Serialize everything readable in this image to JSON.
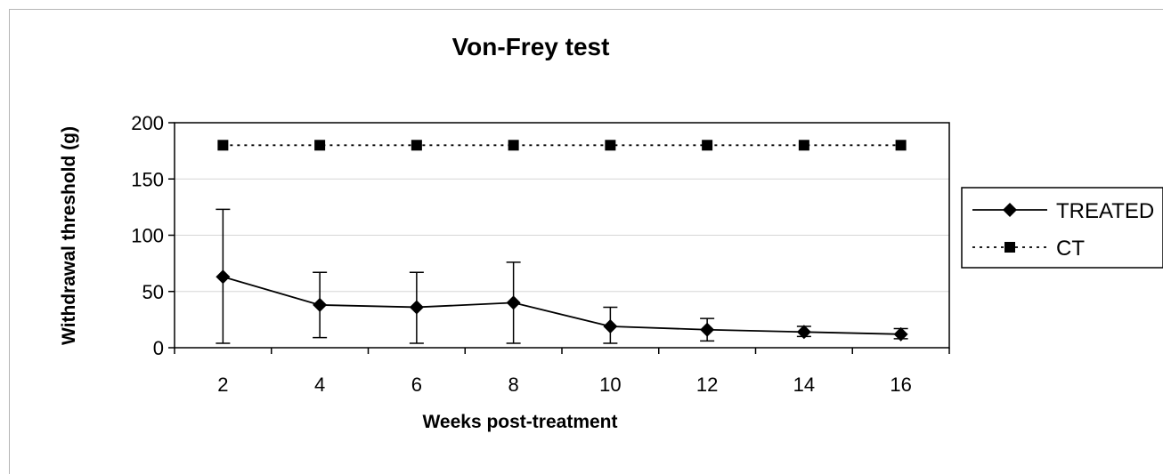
{
  "chart_data": {
    "type": "line",
    "title": "Von-Frey  test",
    "xlabel": "Weeks post-treatment",
    "ylabel": "Withdrawal threshold (g)",
    "x": [
      2,
      4,
      6,
      8,
      10,
      12,
      14,
      16
    ],
    "ylim": [
      0,
      200
    ],
    "yticks": [
      0,
      50,
      100,
      150,
      200
    ],
    "grid": true,
    "legend_position": "right",
    "series": [
      {
        "name": "TREATED",
        "marker": "diamond",
        "line_style": "solid",
        "color": "#000000",
        "values": [
          63,
          38,
          36,
          40,
          19,
          16,
          14,
          12
        ],
        "error_high": [
          123,
          67,
          67,
          76,
          36,
          26,
          19,
          17
        ],
        "error_low": [
          4,
          9,
          4,
          4,
          4,
          6,
          10,
          8
        ]
      },
      {
        "name": "CT",
        "marker": "square",
        "line_style": "dotted",
        "color": "#000000",
        "values": [
          180,
          180,
          180,
          180,
          180,
          180,
          180,
          180
        ]
      }
    ]
  }
}
